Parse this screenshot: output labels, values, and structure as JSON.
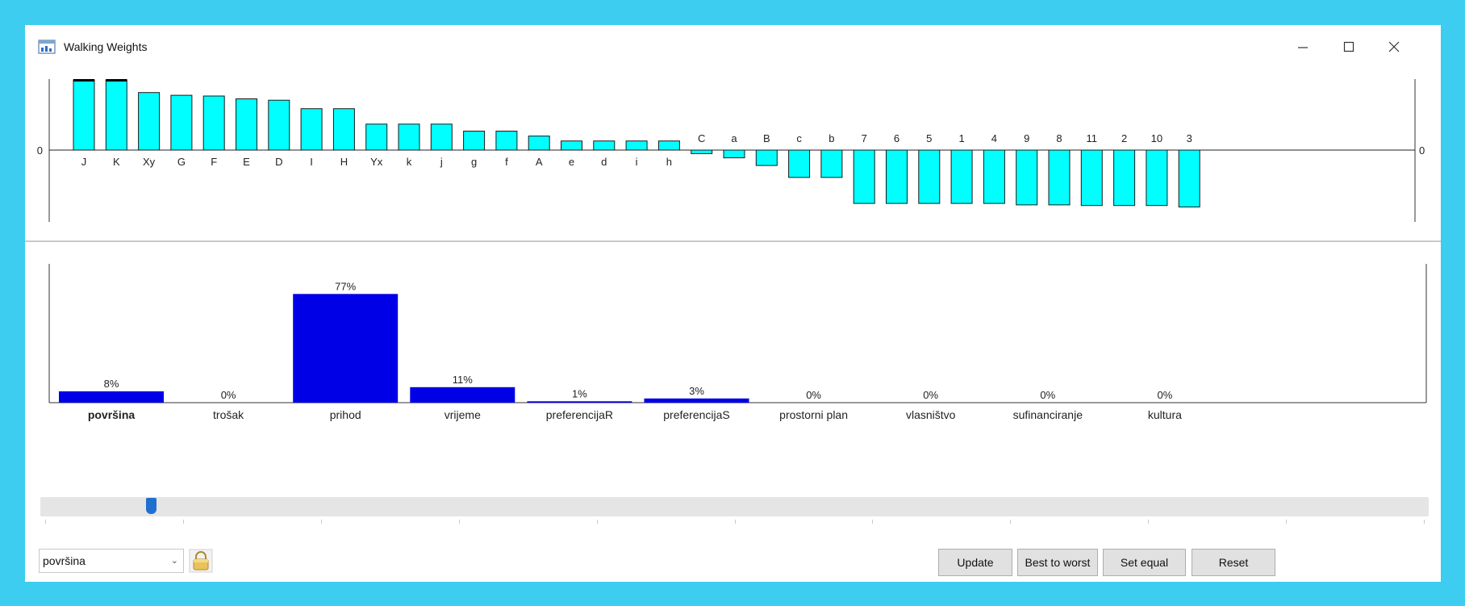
{
  "window": {
    "title": "Walking Weights"
  },
  "icons": {
    "app": "chart-window-icon",
    "minimize": "minimize-icon",
    "maximize": "maximize-icon",
    "close": "close-icon",
    "lock": "lock-icon",
    "dropdown": "chevron-down-icon"
  },
  "colors": {
    "frame": "#3ccdf0",
    "top_bars": "#00ffff",
    "weight_bars": "#0000e6"
  },
  "chart_data": [
    {
      "type": "bar",
      "zero_label": "0",
      "categories": [
        "J",
        "K",
        "Xy",
        "G",
        "F",
        "E",
        "D",
        "I",
        "H",
        "Yx",
        "k",
        "j",
        "g",
        "f",
        "A",
        "e",
        "d",
        "i",
        "h",
        "C",
        "a",
        "B",
        "c",
        "b",
        "7",
        "6",
        "5",
        "1",
        "4",
        "9",
        "8",
        "11",
        "2",
        "10",
        "3"
      ],
      "values": [
        1.0,
        1.0,
        0.82,
        0.78,
        0.77,
        0.73,
        0.71,
        0.59,
        0.59,
        0.37,
        0.37,
        0.37,
        0.27,
        0.27,
        0.2,
        0.13,
        0.13,
        0.13,
        0.13,
        -0.05,
        -0.11,
        -0.22,
        -0.39,
        -0.39,
        -0.76,
        -0.76,
        -0.76,
        -0.76,
        -0.76,
        -0.78,
        -0.78,
        -0.79,
        -0.79,
        -0.79,
        -0.81
      ],
      "ylim": [
        -1.0,
        1.0
      ]
    },
    {
      "type": "bar",
      "categories": [
        "površina",
        "trošak",
        "prihod",
        "vrijeme",
        "preferencijaR",
        "preferencijaS",
        "prostorni plan",
        "vlasništvo",
        "sufinanciranje",
        "kultura"
      ],
      "values": [
        8,
        0,
        77,
        11,
        1,
        3,
        0,
        0,
        0,
        0
      ],
      "labels": [
        "8%",
        "0%",
        "77%",
        "11%",
        "1%",
        "3%",
        "0%",
        "0%",
        "0%",
        "0%"
      ],
      "selected": "površina",
      "ylim": [
        0,
        100
      ]
    }
  ],
  "slider": {
    "value": 8
  },
  "controls": {
    "criterion_select": "površina",
    "update_label": "Update",
    "best_to_worst_label": "Best to worst",
    "set_equal_label": "Set equal",
    "reset_label": "Reset"
  }
}
